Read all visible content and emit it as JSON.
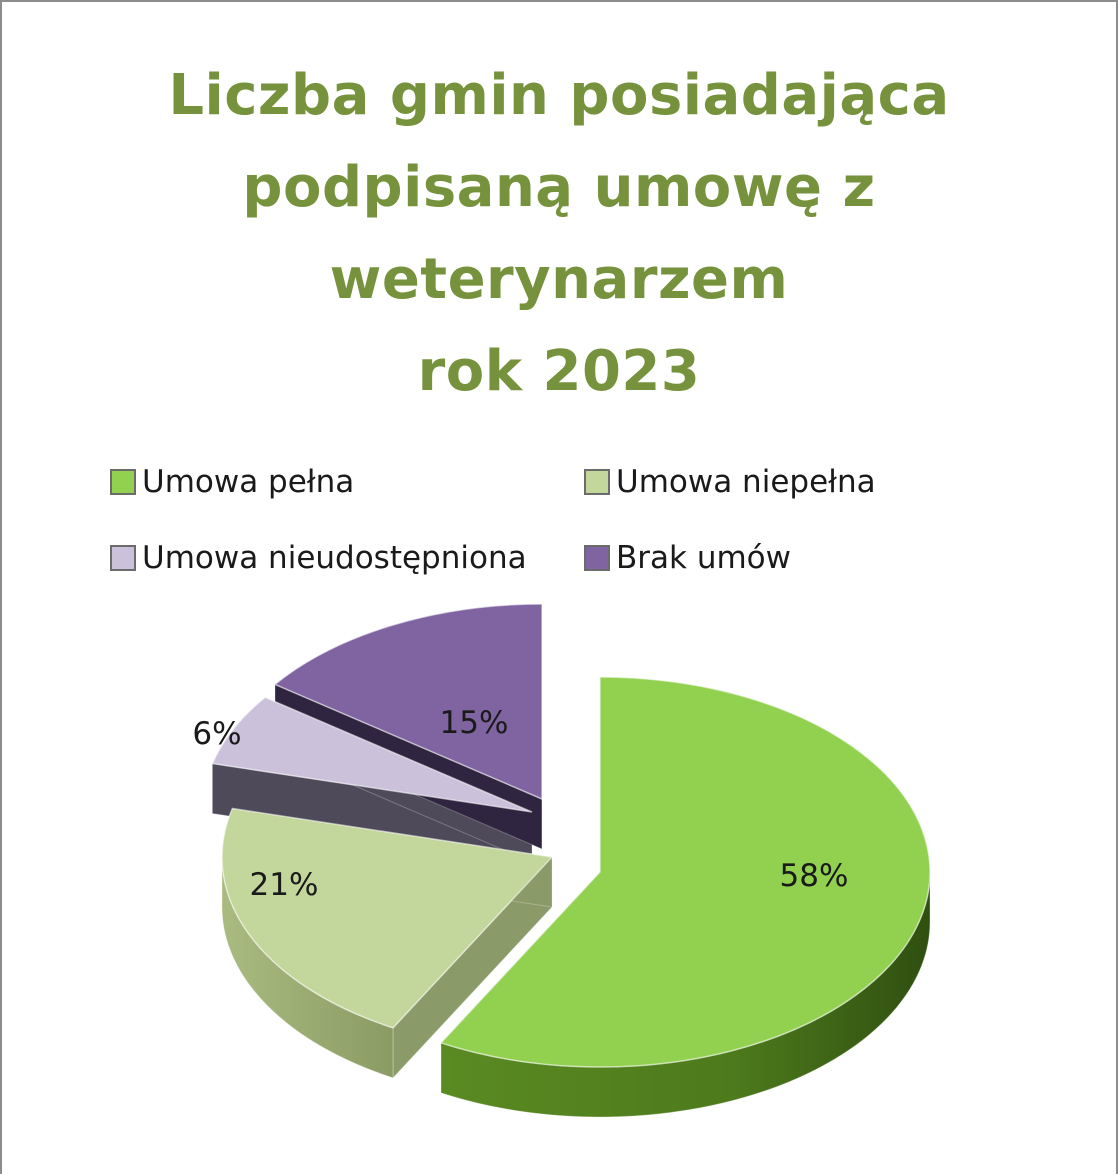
{
  "chart_data": {
    "type": "pie",
    "title_lines": [
      "Liczba gmin posiadająca",
      "podpisaną umowę z",
      "weterynarzem",
      "rok 2023"
    ],
    "legend_position": "top",
    "slices": [
      {
        "label": "Umowa pełna",
        "value": 58,
        "value_label": "58%",
        "color": "#92d050"
      },
      {
        "label": "Umowa niepełna",
        "value": 21,
        "value_label": "21%",
        "color": "#c3d69b"
      },
      {
        "label": "Umowa nieudostępniona",
        "value": 6,
        "value_label": "6%",
        "color": "#ccc1da"
      },
      {
        "label": "Brak umów",
        "value": 15,
        "value_label": "15%",
        "color": "#8064a2"
      }
    ],
    "style": "3d-exploded-pie"
  }
}
